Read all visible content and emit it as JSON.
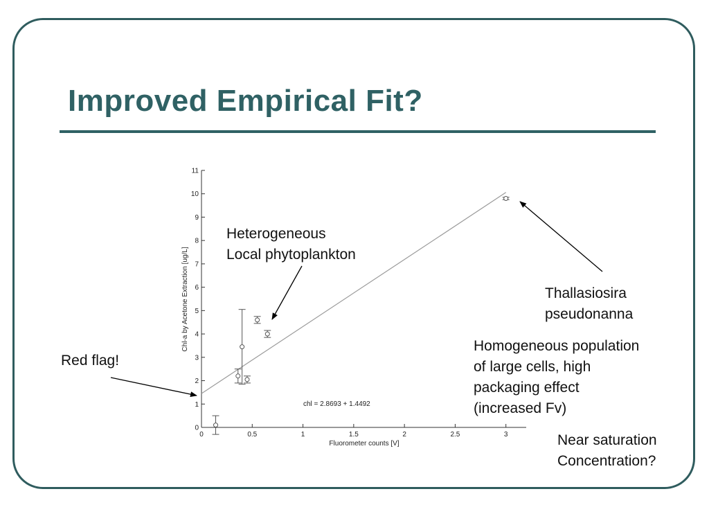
{
  "slide": {
    "title": "Improved Empirical Fit?",
    "colors": {
      "frame": "#2f5c5e",
      "title": "#2f6164",
      "plot_line": "#555555"
    }
  },
  "chart_data": {
    "type": "scatter",
    "xlabel": "Fluorometer counts [V]",
    "ylabel": "Chl-a by Acetone Extraction [ug/L]",
    "xlim": [
      0,
      3.2
    ],
    "ylim": [
      0,
      11
    ],
    "xticks": [
      0,
      0.5,
      1,
      1.5,
      2,
      2.5,
      3
    ],
    "xtick_labels": [
      "0",
      "0.5",
      "1",
      "1.5",
      "2",
      "2.5",
      "3"
    ],
    "yticks": [
      0,
      1,
      2,
      3,
      4,
      5,
      6,
      7,
      8,
      9,
      10,
      11
    ],
    "ytick_labels": [
      "0",
      "1",
      "2",
      "3",
      "4",
      "5",
      "6",
      "7",
      "8",
      "9",
      "10",
      "11"
    ],
    "series": [
      {
        "points": [
          {
            "x": 0.14,
            "y": 0.1,
            "err": 0.4
          },
          {
            "x": 0.36,
            "y": 2.2,
            "err": 0.3
          },
          {
            "x": 0.4,
            "y": 3.45,
            "err": 1.6
          },
          {
            "x": 0.45,
            "y": 2.05,
            "err": 0.15
          },
          {
            "x": 0.55,
            "y": 4.6,
            "err": 0.15
          },
          {
            "x": 0.65,
            "y": 4.0,
            "err": 0.15
          },
          {
            "x": 3.0,
            "y": 9.8,
            "err": 0.05
          }
        ]
      }
    ],
    "fit": {
      "label": "chl = 2.8693 + 1.4492",
      "slope": 2.8693,
      "intercept": 1.4492,
      "x_range": [
        0,
        3.0
      ]
    },
    "grid": false
  },
  "annotations": {
    "heterogeneous": [
      "Heterogeneous",
      "Local phytoplankton"
    ],
    "thallasiosira": [
      "Thallasiosira",
      "pseudonanna"
    ],
    "homogeneous": [
      "Homogeneous population",
      "of large cells, high",
      "packaging effect",
      "(increased Fv)"
    ],
    "saturation": [
      "Near saturation",
      "Concentration?"
    ],
    "red_flag": "Red flag!"
  }
}
